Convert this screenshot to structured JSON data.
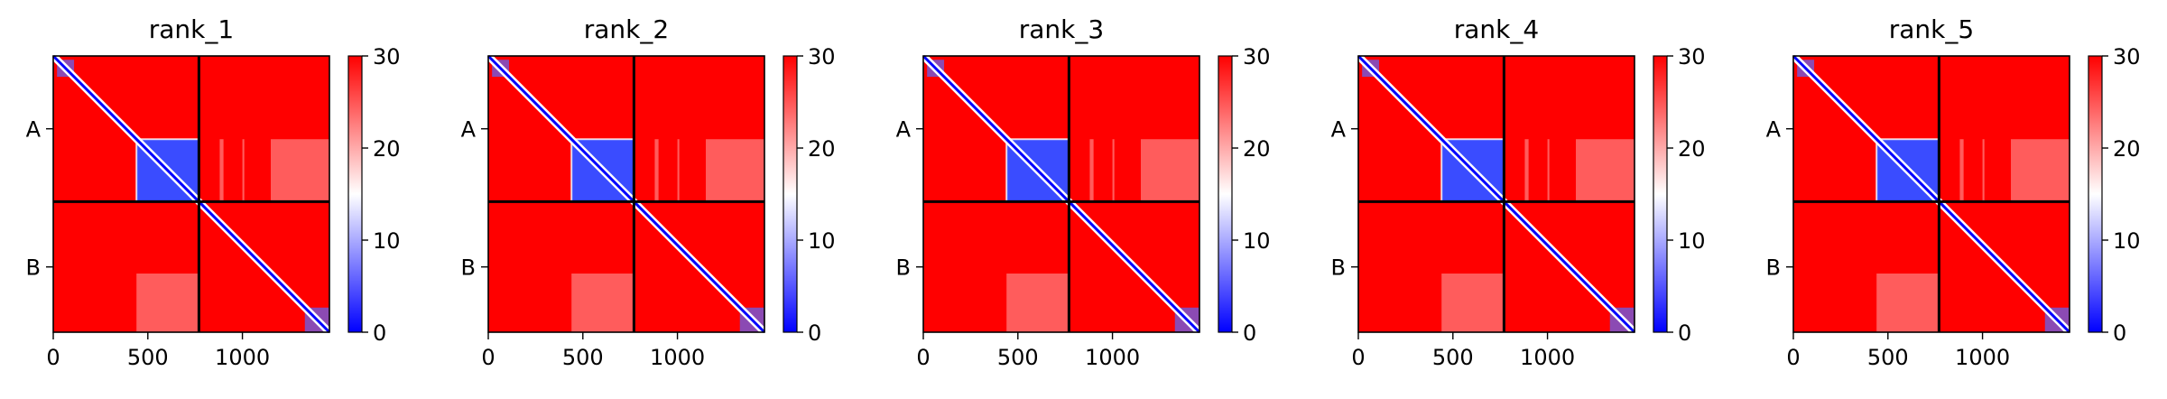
{
  "figure": {
    "columns": 5
  },
  "colorbar": {
    "ticks": [
      0,
      10,
      20,
      30
    ],
    "vmin": 0,
    "vmax": 30,
    "colormap": [
      "#0000ff",
      "#ffffff",
      "#ff0000"
    ]
  },
  "chain_boundary": 770,
  "total_length": 1460,
  "chart_data": [
    {
      "type": "heatmap",
      "title": "rank_1",
      "xlabel": "",
      "ylabel": "",
      "x_ticks": [
        0,
        500,
        1000
      ],
      "y_tick_labels": [
        "A",
        "B"
      ],
      "xlim": [
        0,
        1460
      ],
      "ylim": [
        0,
        1460
      ],
      "value_range": [
        0,
        30
      ],
      "chains": [
        {
          "name": "A",
          "start": 0,
          "end": 770
        },
        {
          "name": "B",
          "start": 770,
          "end": 1460
        }
      ]
    },
    {
      "type": "heatmap",
      "title": "rank_2",
      "xlabel": "",
      "ylabel": "",
      "x_ticks": [
        0,
        500,
        1000
      ],
      "y_tick_labels": [
        "A",
        "B"
      ],
      "xlim": [
        0,
        1460
      ],
      "ylim": [
        0,
        1460
      ],
      "value_range": [
        0,
        30
      ],
      "chains": [
        {
          "name": "A",
          "start": 0,
          "end": 770
        },
        {
          "name": "B",
          "start": 770,
          "end": 1460
        }
      ]
    },
    {
      "type": "heatmap",
      "title": "rank_3",
      "xlabel": "",
      "ylabel": "",
      "x_ticks": [
        0,
        500,
        1000
      ],
      "y_tick_labels": [
        "A",
        "B"
      ],
      "xlim": [
        0,
        1460
      ],
      "ylim": [
        0,
        1460
      ],
      "value_range": [
        0,
        30
      ],
      "chains": [
        {
          "name": "A",
          "start": 0,
          "end": 770
        },
        {
          "name": "B",
          "start": 770,
          "end": 1460
        }
      ]
    },
    {
      "type": "heatmap",
      "title": "rank_4",
      "xlabel": "",
      "ylabel": "",
      "x_ticks": [
        0,
        500,
        1000
      ],
      "y_tick_labels": [
        "A",
        "B"
      ],
      "xlim": [
        0,
        1460
      ],
      "ylim": [
        0,
        1460
      ],
      "value_range": [
        0,
        30
      ],
      "chains": [
        {
          "name": "A",
          "start": 0,
          "end": 770
        },
        {
          "name": "B",
          "start": 770,
          "end": 1460
        }
      ]
    },
    {
      "type": "heatmap",
      "title": "rank_5",
      "xlabel": "",
      "ylabel": "",
      "x_ticks": [
        0,
        500,
        1000
      ],
      "y_tick_labels": [
        "A",
        "B"
      ],
      "xlim": [
        0,
        1460
      ],
      "ylim": [
        0,
        1460
      ],
      "value_range": [
        0,
        30
      ],
      "chains": [
        {
          "name": "A",
          "start": 0,
          "end": 770
        },
        {
          "name": "B",
          "start": 770,
          "end": 1460
        }
      ]
    }
  ]
}
